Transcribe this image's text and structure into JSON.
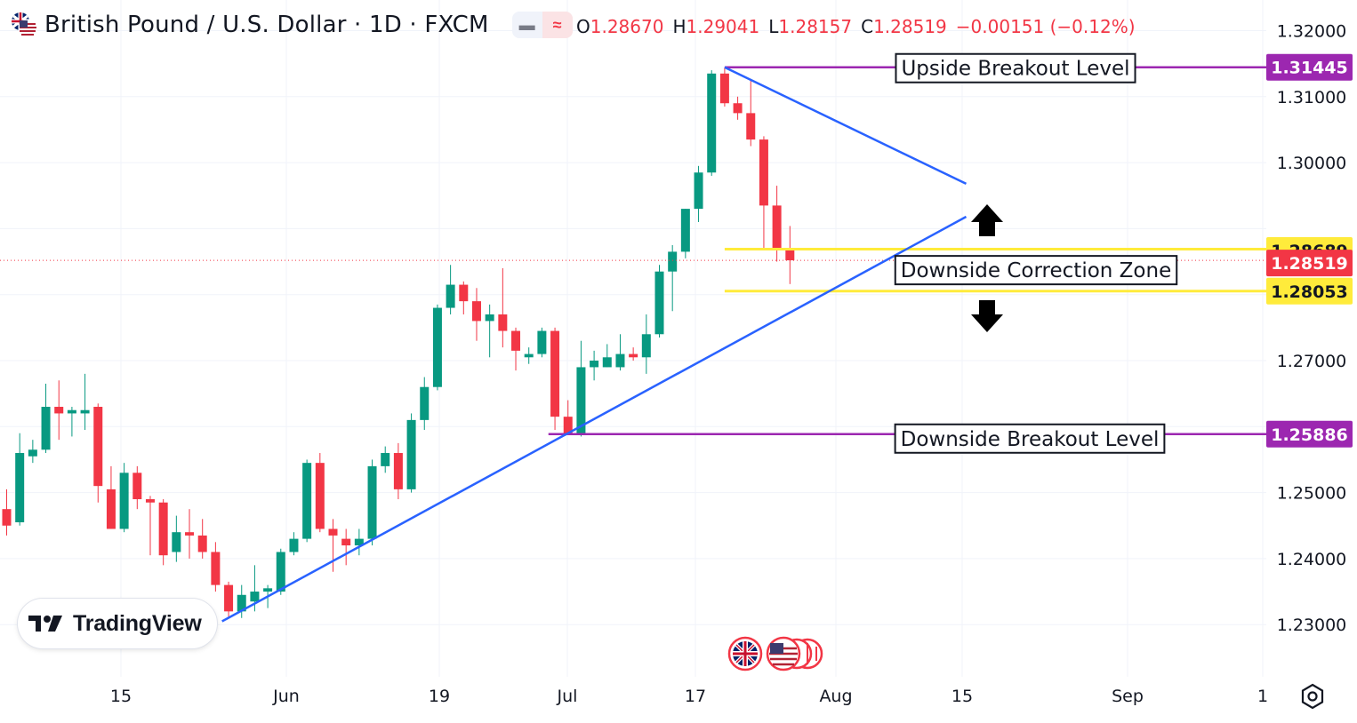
{
  "header": {
    "symbol_title": "British Pound / U.S. Dollar · 1D · FXCM",
    "open_key": "O",
    "open": "1.28670",
    "high_key": "H",
    "high": "1.29041",
    "low_key": "L",
    "low": "1.28157",
    "close_key": "C",
    "close": "1.28519",
    "change": "−0.00151 (−0.12%)",
    "toggle_icons": [
      "minus-icon",
      "wave-icon"
    ]
  },
  "logo": {
    "text": "TradingView",
    "icon": "tradingview-logo-icon"
  },
  "colors": {
    "up": "#089981",
    "down": "#f23645",
    "trendline": "#2962ff",
    "breakout": "#9c27b0",
    "zone": "#ffeb3b",
    "grid": "#f0f3fa",
    "text": "#131722"
  },
  "chart_data": {
    "type": "candlestick",
    "ylim": [
      1.2235,
      1.3245
    ],
    "y_ticks": [
      "1.32000",
      "1.31000",
      "1.30000",
      "1.27000",
      "1.25000",
      "1.24000",
      "1.23000"
    ],
    "x_ticks": [
      "15",
      "Jun",
      "19",
      "Jul",
      "17",
      "Aug",
      "15",
      "Sep",
      "1"
    ],
    "candles": [
      {
        "o": 1.2475,
        "h": 1.2505,
        "l": 1.2435,
        "c": 1.245
      },
      {
        "o": 1.2455,
        "h": 1.259,
        "l": 1.245,
        "c": 1.256
      },
      {
        "o": 1.2555,
        "h": 1.258,
        "l": 1.2545,
        "c": 1.2565
      },
      {
        "o": 1.2565,
        "h": 1.2665,
        "l": 1.256,
        "c": 1.263
      },
      {
        "o": 1.263,
        "h": 1.267,
        "l": 1.258,
        "c": 1.262
      },
      {
        "o": 1.262,
        "h": 1.263,
        "l": 1.2585,
        "c": 1.2625
      },
      {
        "o": 1.262,
        "h": 1.268,
        "l": 1.2595,
        "c": 1.2625
      },
      {
        "o": 1.263,
        "h": 1.2635,
        "l": 1.2485,
        "c": 1.251
      },
      {
        "o": 1.2505,
        "h": 1.254,
        "l": 1.2445,
        "c": 1.2445
      },
      {
        "o": 1.2445,
        "h": 1.2545,
        "l": 1.244,
        "c": 1.253
      },
      {
        "o": 1.253,
        "h": 1.254,
        "l": 1.2475,
        "c": 1.249
      },
      {
        "o": 1.249,
        "h": 1.2495,
        "l": 1.2405,
        "c": 1.2485
      },
      {
        "o": 1.2485,
        "h": 1.249,
        "l": 1.239,
        "c": 1.2405
      },
      {
        "o": 1.241,
        "h": 1.2465,
        "l": 1.2395,
        "c": 1.244
      },
      {
        "o": 1.244,
        "h": 1.2475,
        "l": 1.24,
        "c": 1.2435
      },
      {
        "o": 1.2435,
        "h": 1.246,
        "l": 1.24,
        "c": 1.241
      },
      {
        "o": 1.241,
        "h": 1.2425,
        "l": 1.235,
        "c": 1.236
      },
      {
        "o": 1.236,
        "h": 1.2365,
        "l": 1.231,
        "c": 1.232
      },
      {
        "o": 1.232,
        "h": 1.236,
        "l": 1.231,
        "c": 1.2345
      },
      {
        "o": 1.2335,
        "h": 1.239,
        "l": 1.232,
        "c": 1.235
      },
      {
        "o": 1.235,
        "h": 1.236,
        "l": 1.2325,
        "c": 1.2355
      },
      {
        "o": 1.235,
        "h": 1.2415,
        "l": 1.2345,
        "c": 1.241
      },
      {
        "o": 1.241,
        "h": 1.244,
        "l": 1.2405,
        "c": 1.243
      },
      {
        "o": 1.243,
        "h": 1.255,
        "l": 1.2425,
        "c": 1.2545
      },
      {
        "o": 1.2545,
        "h": 1.256,
        "l": 1.244,
        "c": 1.2445
      },
      {
        "o": 1.2445,
        "h": 1.246,
        "l": 1.238,
        "c": 1.2435
      },
      {
        "o": 1.243,
        "h": 1.2445,
        "l": 1.239,
        "c": 1.242
      },
      {
        "o": 1.242,
        "h": 1.2445,
        "l": 1.2405,
        "c": 1.243
      },
      {
        "o": 1.243,
        "h": 1.255,
        "l": 1.242,
        "c": 1.254
      },
      {
        "o": 1.254,
        "h": 1.257,
        "l": 1.253,
        "c": 1.256
      },
      {
        "o": 1.256,
        "h": 1.2575,
        "l": 1.249,
        "c": 1.2505
      },
      {
        "o": 1.2505,
        "h": 1.262,
        "l": 1.25,
        "c": 1.261
      },
      {
        "o": 1.261,
        "h": 1.2675,
        "l": 1.2595,
        "c": 1.266
      },
      {
        "o": 1.266,
        "h": 1.2785,
        "l": 1.2655,
        "c": 1.278
      },
      {
        "o": 1.278,
        "h": 1.2845,
        "l": 1.277,
        "c": 1.2815
      },
      {
        "o": 1.2815,
        "h": 1.282,
        "l": 1.277,
        "c": 1.279
      },
      {
        "o": 1.279,
        "h": 1.281,
        "l": 1.273,
        "c": 1.276
      },
      {
        "o": 1.276,
        "h": 1.2785,
        "l": 1.2705,
        "c": 1.277
      },
      {
        "o": 1.277,
        "h": 1.284,
        "l": 1.272,
        "c": 1.2745
      },
      {
        "o": 1.2745,
        "h": 1.275,
        "l": 1.2685,
        "c": 1.2715
      },
      {
        "o": 1.2705,
        "h": 1.272,
        "l": 1.2695,
        "c": 1.271
      },
      {
        "o": 1.271,
        "h": 1.275,
        "l": 1.2705,
        "c": 1.2745
      },
      {
        "o": 1.2745,
        "h": 1.275,
        "l": 1.2595,
        "c": 1.2615
      },
      {
        "o": 1.2615,
        "h": 1.264,
        "l": 1.259,
        "c": 1.259
      },
      {
        "o": 1.259,
        "h": 1.273,
        "l": 1.2585,
        "c": 1.269
      },
      {
        "o": 1.269,
        "h": 1.2715,
        "l": 1.267,
        "c": 1.27
      },
      {
        "o": 1.269,
        "h": 1.2725,
        "l": 1.269,
        "c": 1.2705
      },
      {
        "o": 1.269,
        "h": 1.274,
        "l": 1.2685,
        "c": 1.271
      },
      {
        "o": 1.271,
        "h": 1.272,
        "l": 1.27,
        "c": 1.2705
      },
      {
        "o": 1.2705,
        "h": 1.277,
        "l": 1.268,
        "c": 1.274
      },
      {
        "o": 1.274,
        "h": 1.2845,
        "l": 1.2735,
        "c": 1.2835
      },
      {
        "o": 1.2835,
        "h": 1.2875,
        "l": 1.2775,
        "c": 1.2865
      },
      {
        "o": 1.2865,
        "h": 1.293,
        "l": 1.2855,
        "c": 1.293
      },
      {
        "o": 1.293,
        "h": 1.2995,
        "l": 1.291,
        "c": 1.2985
      },
      {
        "o": 1.2985,
        "h": 1.314,
        "l": 1.298,
        "c": 1.3135
      },
      {
        "o": 1.3135,
        "h": 1.3144,
        "l": 1.3085,
        "c": 1.309
      },
      {
        "o": 1.309,
        "h": 1.31,
        "l": 1.3065,
        "c": 1.3075
      },
      {
        "o": 1.3075,
        "h": 1.3125,
        "l": 1.3025,
        "c": 1.3035
      },
      {
        "o": 1.3035,
        "h": 1.304,
        "l": 1.287,
        "c": 1.2935
      },
      {
        "o": 1.2935,
        "h": 1.2965,
        "l": 1.285,
        "c": 1.2867
      },
      {
        "o": 1.2867,
        "h": 1.2904,
        "l": 1.2816,
        "c": 1.2852
      }
    ],
    "trendlines": [
      {
        "name": "upper-resistance",
        "from": {
          "i": 55.0,
          "v": 1.31445
        },
        "to": {
          "i": 73.5,
          "v": 1.2968
        }
      },
      {
        "name": "lower-support",
        "from": {
          "i": 16.5,
          "v": 1.2305
        },
        "to": {
          "i": 73.5,
          "v": 1.2918
        }
      }
    ],
    "levels": [
      {
        "name": "upside-breakout-level",
        "value": 1.31445,
        "label": "Upside Breakout Level",
        "price": "1.31445",
        "style": "breakout"
      },
      {
        "name": "zone-top",
        "value": 1.28689,
        "price": "1.28689",
        "style": "zone"
      },
      {
        "name": "zone-bottom",
        "value": 1.28053,
        "price": "1.28053",
        "style": "zone"
      },
      {
        "name": "downside-breakout-level",
        "value": 1.25886,
        "label": "Downside Breakout Level",
        "price": "1.25886",
        "style": "breakout"
      }
    ],
    "zone_label": "Downside Correction Zone",
    "last_price": {
      "value": 1.28519,
      "price": "1.28519"
    },
    "arrows": [
      {
        "name": "up-arrow-icon",
        "direction": "up"
      },
      {
        "name": "down-arrow-icon",
        "direction": "down"
      }
    ]
  }
}
